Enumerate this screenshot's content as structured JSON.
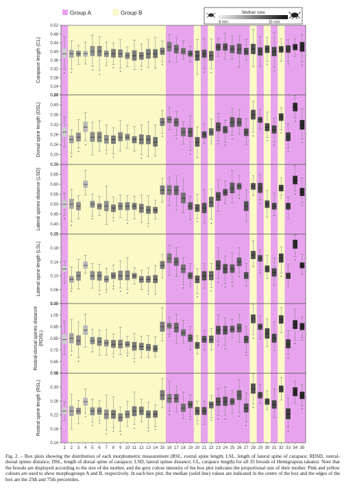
{
  "chart_data": {
    "type": "box",
    "legend": {
      "groups": [
        {
          "name": "Group A",
          "color": "#e8a3ee"
        },
        {
          "name": "Group B",
          "color": "#fbfac6"
        }
      ],
      "mother_size": {
        "title": "Mother size",
        "min_label": "8 mm",
        "max_label": "15 mm"
      }
    },
    "categories": [
      "1",
      "2",
      "3",
      "4",
      "5",
      "6",
      "7",
      "8",
      "9",
      "10",
      "11",
      "12",
      "13",
      "14",
      "15",
      "16",
      "17",
      "18",
      "19",
      "20",
      "21",
      "22",
      "23",
      "24",
      "25",
      "26",
      "27",
      "28",
      "29",
      "30",
      "31",
      "32",
      "33",
      "34",
      "35"
    ],
    "group_of_category": [
      "A",
      "B",
      "B",
      "B",
      "B",
      "B",
      "B",
      "B",
      "B",
      "B",
      "B",
      "B",
      "B",
      "B",
      "B",
      "A",
      "A",
      "A",
      "A",
      "B",
      "A",
      "B",
      "A",
      "A",
      "A",
      "A",
      "A",
      "B",
      "A",
      "B",
      "A",
      "B",
      "A",
      "A",
      "A"
    ],
    "mother_shade": [
      0.15,
      0.35,
      0.45,
      0.25,
      0.45,
      0.5,
      0.45,
      0.55,
      0.5,
      0.5,
      0.55,
      0.55,
      0.55,
      0.6,
      0.55,
      0.55,
      0.65,
      0.6,
      0.7,
      0.7,
      0.75,
      0.65,
      0.75,
      0.75,
      0.7,
      0.7,
      0.75,
      0.75,
      0.8,
      0.8,
      0.8,
      0.85,
      0.85,
      0.95,
      0.95
    ],
    "panels": [
      {
        "ylabel": "Carapace length (CL)",
        "ylim": [
          0.2,
          0.52
        ],
        "ticks": [
          "0.20",
          "0.24",
          "0.28",
          "0.32",
          "0.36",
          "0.40",
          "0.44",
          "0.48",
          "0.52"
        ],
        "medians": [
          0.39,
          0.39,
          0.39,
          0.39,
          0.4,
          0.4,
          0.39,
          0.39,
          0.39,
          0.38,
          0.38,
          0.38,
          0.39,
          0.39,
          0.4,
          0.42,
          0.41,
          0.4,
          0.39,
          0.38,
          0.39,
          0.38,
          0.42,
          0.42,
          0.41,
          0.41,
          0.4,
          0.41,
          0.4,
          0.41,
          0.4,
          0.41,
          0.41,
          0.42,
          0.42
        ]
      },
      {
        "ylabel": "Dorsal spine length (DSL)",
        "ylim": [
          0.16,
          0.44
        ],
        "ticks": [
          "0.16",
          "0.20",
          "0.24",
          "0.28",
          "0.32",
          "0.36",
          "0.40",
          "0.44"
        ],
        "medians": [
          0.29,
          0.26,
          0.27,
          0.31,
          0.27,
          0.27,
          0.26,
          0.26,
          0.27,
          0.27,
          0.26,
          0.26,
          0.26,
          0.25,
          0.33,
          0.34,
          0.33,
          0.29,
          0.29,
          0.25,
          0.28,
          0.29,
          0.31,
          0.3,
          0.33,
          0.33,
          0.29,
          0.36,
          0.34,
          0.31,
          0.3,
          0.35,
          0.27,
          0.39,
          0.32
        ]
      },
      {
        "ylabel": "Lateral spines distance (LSD)",
        "ylim": [
          0.35,
          0.7
        ],
        "ticks": [
          "0.35",
          "0.40",
          "0.45",
          "0.50",
          "0.55",
          "0.60",
          "0.65",
          "0.70"
        ],
        "medians": [
          0.5,
          0.5,
          0.49,
          0.6,
          0.5,
          0.49,
          0.49,
          0.48,
          0.49,
          0.49,
          0.49,
          0.48,
          0.47,
          0.47,
          0.57,
          0.57,
          0.57,
          0.53,
          0.49,
          0.48,
          0.48,
          0.51,
          0.54,
          0.56,
          0.58,
          0.59,
          0.49,
          0.59,
          0.58,
          0.5,
          0.49,
          0.58,
          0.49,
          0.62,
          0.56
        ]
      },
      {
        "ylabel": "Lateral spine length (LSL)",
        "ylim": [
          0.02,
          0.22
        ],
        "ticks": [
          "0.02",
          "0.06",
          "0.10",
          "0.14",
          "0.18",
          "0.22"
        ],
        "medians": [
          0.12,
          0.09,
          0.1,
          0.13,
          0.1,
          0.1,
          0.09,
          0.1,
          0.1,
          0.1,
          0.1,
          0.09,
          0.09,
          0.09,
          0.13,
          0.15,
          0.14,
          0.12,
          0.1,
          0.09,
          0.1,
          0.1,
          0.13,
          0.12,
          0.12,
          0.14,
          0.1,
          0.16,
          0.15,
          0.12,
          0.11,
          0.15,
          0.1,
          0.19,
          0.13
        ]
      },
      {
        "ylabel": "Rostral-dorsal spines distance (RDSL)",
        "ylim": [
          0.55,
          1.15
        ],
        "ticks": [
          "0.55",
          "0.65",
          "0.75",
          "0.85",
          "0.95",
          "1.05",
          "1.15"
        ],
        "medians": [
          0.84,
          0.85,
          0.83,
          0.92,
          0.83,
          0.82,
          0.81,
          0.8,
          0.8,
          0.8,
          0.78,
          0.78,
          0.77,
          0.76,
          0.95,
          0.96,
          0.94,
          0.9,
          0.85,
          0.79,
          0.84,
          0.84,
          0.92,
          0.92,
          0.93,
          0.94,
          0.84,
          1.02,
          0.95,
          0.89,
          0.85,
          1.01,
          0.8,
          0.97,
          0.95
        ]
      },
      {
        "ylabel": "Rostral spine length (RSL)",
        "ylim": [
          0.14,
          0.36
        ],
        "ticks": [
          "0.14",
          "0.18",
          "0.22",
          "0.26",
          "0.30",
          "0.34"
        ],
        "medians": [
          0.24,
          0.24,
          0.24,
          0.27,
          0.24,
          0.24,
          0.23,
          0.23,
          0.22,
          0.23,
          0.24,
          0.24,
          0.23,
          0.23,
          0.29,
          0.28,
          0.28,
          0.25,
          0.26,
          0.24,
          0.24,
          0.26,
          0.27,
          0.27,
          0.27,
          0.29,
          0.25,
          0.31,
          0.29,
          0.27,
          0.26,
          0.31,
          0.23,
          0.3,
          0.29
        ]
      }
    ]
  },
  "caption": "Fig. 2. – Box plots showing the distribution of each morphometric measurement (RSL, rostral spine length; LSL, length of lateral spine of carapace; RDSD, rostral-dorsal spines distance; DSL, length of dorsal spine of carapace; LSD, lateral spines distance; CL, carapace length) for all 35 broods of Hemigrapsus takanoi. Note that the broods are displayed according to the size of the mother, and the grey colour intensity of the box plot indicates the proportional size of their mother. Pink and yellow colours are used to show morphogroups A and B, respectively. In each box plot, the median (solid line) values are indicated in the centre of the box and the edges of the box are the 25th and 75th percentiles."
}
